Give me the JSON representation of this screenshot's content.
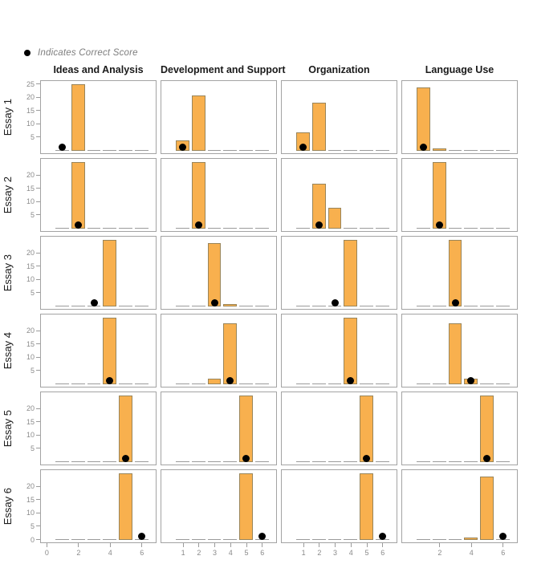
{
  "legend": {
    "label": "Indicates Correct Score"
  },
  "colors": {
    "bar_fill": "#F8B04E",
    "bar_stroke": "#99855A",
    "dot": "#000000",
    "panel_border": "#A3A3A3",
    "tick": "#9B9B9B",
    "tick_label": "#8A8A8A",
    "title_text": "#1A1A1A"
  },
  "chart_data": {
    "type": "bar",
    "title": "",
    "layout": "small multiples: 6 essay rows x 4 rating-domain columns; histogram of 25 rater scores per panel, black dot marks the correct score at y=1.5",
    "columns": [
      "Ideas and Analysis",
      "Development and Support",
      "Organization",
      "Language Use"
    ],
    "rows": [
      "Essay 1",
      "Essay 2",
      "Essay 3",
      "Essay 4",
      "Essay 5",
      "Essay 6"
    ],
    "x_values": [
      1,
      2,
      3,
      4,
      5,
      6
    ],
    "xlim": [
      0,
      7
    ],
    "ylim": [
      0,
      26
    ],
    "grid": "off",
    "legend_position": "top-left",
    "y_tick_labels_by_row": [
      [
        5,
        10,
        15,
        20,
        25
      ],
      [
        5,
        10,
        15,
        20
      ],
      [
        5,
        10,
        15,
        20
      ],
      [
        5,
        10,
        15,
        20
      ],
      [
        5,
        10,
        15,
        20
      ],
      [
        0,
        5,
        10,
        15,
        20
      ]
    ],
    "x_tick_labels_by_col": [
      [
        0,
        2,
        4,
        6
      ],
      [
        1,
        2,
        3,
        4,
        5,
        6
      ],
      [
        1,
        2,
        3,
        4,
        5,
        6
      ],
      [
        2,
        4,
        6
      ]
    ],
    "dot_y": 1.5,
    "panels": [
      {
        "row": "Essay 1",
        "col": "Ideas and Analysis",
        "counts": [
          0,
          25,
          0,
          0,
          0,
          0
        ],
        "correct_score": 1
      },
      {
        "row": "Essay 1",
        "col": "Development and Support",
        "counts": [
          4,
          21,
          0,
          0,
          0,
          0
        ],
        "correct_score": 1
      },
      {
        "row": "Essay 1",
        "col": "Organization",
        "counts": [
          7,
          18,
          0,
          0,
          0,
          0
        ],
        "correct_score": 1
      },
      {
        "row": "Essay 1",
        "col": "Language Use",
        "counts": [
          24,
          1,
          0,
          0,
          0,
          0
        ],
        "correct_score": 1
      },
      {
        "row": "Essay 2",
        "col": "Ideas and Analysis",
        "counts": [
          0,
          25,
          0,
          0,
          0,
          0
        ],
        "correct_score": 2
      },
      {
        "row": "Essay 2",
        "col": "Development and Support",
        "counts": [
          0,
          25,
          0,
          0,
          0,
          0
        ],
        "correct_score": 2
      },
      {
        "row": "Essay 2",
        "col": "Organization",
        "counts": [
          0,
          17,
          8,
          0,
          0,
          0
        ],
        "correct_score": 2
      },
      {
        "row": "Essay 2",
        "col": "Language Use",
        "counts": [
          0,
          25,
          0,
          0,
          0,
          0
        ],
        "correct_score": 2
      },
      {
        "row": "Essay 3",
        "col": "Ideas and Analysis",
        "counts": [
          0,
          0,
          0,
          25,
          0,
          0
        ],
        "correct_score": 3
      },
      {
        "row": "Essay 3",
        "col": "Development and Support",
        "counts": [
          0,
          0,
          24,
          1,
          0,
          0
        ],
        "correct_score": 3
      },
      {
        "row": "Essay 3",
        "col": "Organization",
        "counts": [
          0,
          0,
          0,
          25,
          0,
          0
        ],
        "correct_score": 3
      },
      {
        "row": "Essay 3",
        "col": "Language Use",
        "counts": [
          0,
          0,
          25,
          0,
          0,
          0
        ],
        "correct_score": 3
      },
      {
        "row": "Essay 4",
        "col": "Ideas and Analysis",
        "counts": [
          0,
          0,
          0,
          25,
          0,
          0
        ],
        "correct_score": 4
      },
      {
        "row": "Essay 4",
        "col": "Development and Support",
        "counts": [
          0,
          0,
          2,
          23,
          0,
          0
        ],
        "correct_score": 4
      },
      {
        "row": "Essay 4",
        "col": "Organization",
        "counts": [
          0,
          0,
          0,
          25,
          0,
          0
        ],
        "correct_score": 4
      },
      {
        "row": "Essay 4",
        "col": "Language Use",
        "counts": [
          0,
          0,
          23,
          2,
          0,
          0
        ],
        "correct_score": 4
      },
      {
        "row": "Essay 5",
        "col": "Ideas and Analysis",
        "counts": [
          0,
          0,
          0,
          0,
          25,
          0
        ],
        "correct_score": 5
      },
      {
        "row": "Essay 5",
        "col": "Development and Support",
        "counts": [
          0,
          0,
          0,
          0,
          25,
          0
        ],
        "correct_score": 5
      },
      {
        "row": "Essay 5",
        "col": "Organization",
        "counts": [
          0,
          0,
          0,
          0,
          25,
          0
        ],
        "correct_score": 5
      },
      {
        "row": "Essay 5",
        "col": "Language Use",
        "counts": [
          0,
          0,
          0,
          0,
          25,
          0
        ],
        "correct_score": 5
      },
      {
        "row": "Essay 6",
        "col": "Ideas and Analysis",
        "counts": [
          0,
          0,
          0,
          0,
          25,
          0
        ],
        "correct_score": 6
      },
      {
        "row": "Essay 6",
        "col": "Development and Support",
        "counts": [
          0,
          0,
          0,
          0,
          25,
          0
        ],
        "correct_score": 6
      },
      {
        "row": "Essay 6",
        "col": "Organization",
        "counts": [
          0,
          0,
          0,
          0,
          25,
          0
        ],
        "correct_score": 6
      },
      {
        "row": "Essay 6",
        "col": "Language Use",
        "counts": [
          0,
          0,
          0,
          1,
          24,
          0
        ],
        "correct_score": 6
      }
    ]
  }
}
